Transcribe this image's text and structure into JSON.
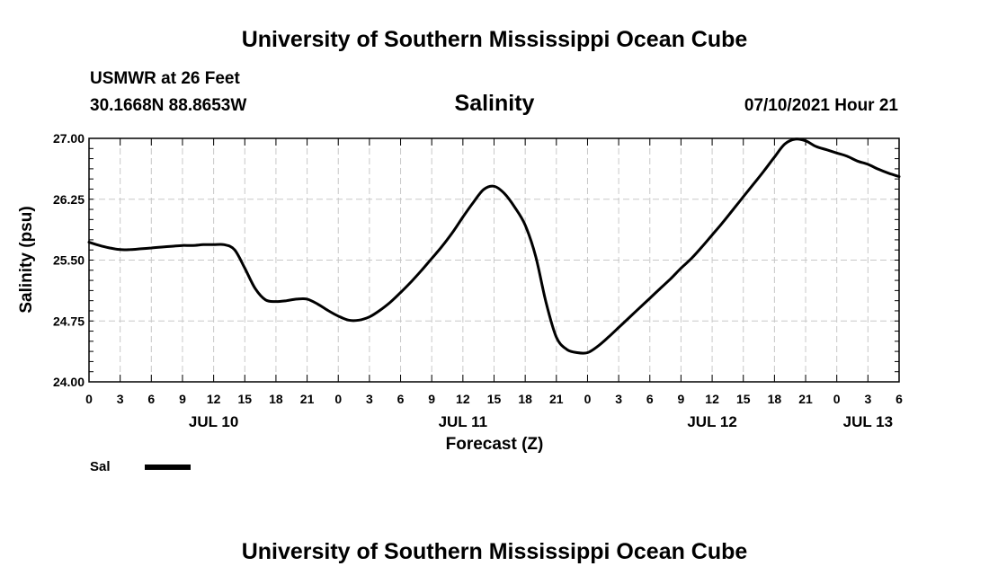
{
  "header": {
    "title_top": "University of Southern Mississippi Ocean Cube",
    "station": "USMWR at 26 Feet",
    "coords": "30.1668N  88.8653W",
    "date": "07/10/2021 Hour 21"
  },
  "footer": {
    "title_bottom": "University of Southern Mississippi Ocean Cube"
  },
  "legend": {
    "label": "Sal"
  },
  "chart_data": {
    "type": "line",
    "title": "Salinity",
    "xlabel": "Forecast (Z)",
    "ylabel": "Salinity (psu)",
    "ylim": [
      24.0,
      27.0
    ],
    "xlim": [
      0,
      78
    ],
    "yticks": [
      "24.00",
      "24.75",
      "25.50",
      "26.25",
      "27.00"
    ],
    "xtick_labels": [
      "0",
      "3",
      "6",
      "9",
      "12",
      "15",
      "18",
      "21",
      "0",
      "3",
      "6",
      "9",
      "12",
      "15",
      "18",
      "21",
      "0",
      "3",
      "6",
      "9",
      "12",
      "15",
      "18",
      "21",
      "0",
      "3",
      "6"
    ],
    "day_labels": [
      {
        "label": "JUL 10",
        "x": 12
      },
      {
        "label": "JUL 11",
        "x": 36
      },
      {
        "label": "JUL 12",
        "x": 60
      },
      {
        "label": "JUL 13",
        "x": 75
      }
    ],
    "grid": true,
    "series": [
      {
        "name": "Sal",
        "color": "#000000",
        "x": [
          0,
          1,
          2,
          3,
          4,
          5,
          6,
          7,
          8,
          9,
          10,
          11,
          12,
          13,
          14,
          15,
          16,
          17,
          18,
          19,
          20,
          21,
          22,
          23,
          24,
          25,
          26,
          27,
          28,
          29,
          30,
          31,
          32,
          33,
          34,
          35,
          36,
          37,
          38,
          39,
          40,
          41,
          42,
          43,
          44,
          45,
          46,
          47,
          48,
          49,
          50,
          51,
          52,
          53,
          54,
          55,
          56,
          57,
          58,
          59,
          60,
          61,
          62,
          63,
          64,
          65,
          66,
          67,
          68,
          69,
          70,
          71,
          72,
          73,
          74,
          75,
          76,
          77,
          78
        ],
        "values": [
          25.72,
          25.68,
          25.65,
          25.63,
          25.63,
          25.64,
          25.65,
          25.66,
          25.67,
          25.68,
          25.68,
          25.69,
          25.69,
          25.69,
          25.63,
          25.4,
          25.15,
          25.01,
          24.99,
          25.0,
          25.02,
          25.02,
          24.96,
          24.88,
          24.81,
          24.76,
          24.76,
          24.8,
          24.88,
          24.98,
          25.1,
          25.23,
          25.37,
          25.52,
          25.67,
          25.84,
          26.03,
          26.21,
          26.37,
          26.41,
          26.32,
          26.15,
          25.93,
          25.55,
          24.98,
          24.55,
          24.4,
          24.36,
          24.36,
          24.44,
          24.55,
          24.67,
          24.79,
          24.91,
          25.03,
          25.15,
          25.27,
          25.4,
          25.52,
          25.66,
          25.81,
          25.96,
          26.12,
          26.28,
          26.44,
          26.6,
          26.77,
          26.93,
          26.99,
          26.97,
          26.9,
          26.86,
          26.82,
          26.78,
          26.72,
          26.68,
          26.62,
          26.57,
          26.53
        ]
      }
    ]
  }
}
